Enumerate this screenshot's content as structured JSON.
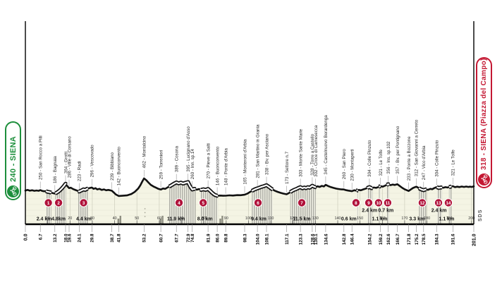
{
  "start_badge": {
    "label": "240 - SIENA"
  },
  "finish_badge": {
    "label": "318 - SIENA (Piazza del Campo)"
  },
  "signature": "SDS",
  "colors": {
    "start_green": "#1d8f3c",
    "finish_red": "#c41833",
    "sector_badge_red": "#b0123a",
    "fill_cream": "#f4f4e4",
    "band_gray": "#b0b0a8",
    "band_bg": "#efefe3",
    "grid_gray": "#cdcdbc",
    "line_black": "#111111"
  },
  "chart_data": {
    "type": "area",
    "title": "",
    "xlabel": "km",
    "ylabel": "elevation (m)",
    "xlim": [
      0,
      201
    ],
    "elev_range_m": [
      142,
      462
    ],
    "start_km_label": "0.0",
    "finish_km_label": "201.0",
    "x_ticks": [
      10,
      20,
      30,
      40,
      50,
      60,
      70,
      80,
      90,
      100,
      110,
      120,
      130,
      140,
      150,
      160,
      170,
      180,
      190,
      200
    ],
    "points": [
      {
        "km": 6.7,
        "elev": 250,
        "label": "250 - San Rocco a Pilli"
      },
      {
        "km": 13.2,
        "elev": 186,
        "label": "186 - Bagnaia"
      },
      {
        "km": 18.0,
        "elev": 364,
        "label": "364 - Grotti"
      },
      {
        "km": 19.6,
        "elev": 286,
        "label": "286 - Ville di Corsano"
      },
      {
        "km": 24.1,
        "elev": 223,
        "label": "223 - Radi"
      },
      {
        "km": 29.8,
        "elev": 296,
        "label": "296 - Vescovado"
      },
      {
        "km": 38.7,
        "elev": 239,
        "label": "239 - Bibbiano"
      },
      {
        "km": 41.8,
        "elev": 142,
        "label": "142 - Buonconvento"
      },
      {
        "km": 53.2,
        "elev": 462,
        "label": "462 - Montalcino"
      },
      {
        "km": 60.7,
        "elev": 259,
        "label": "259 - Torrenieri"
      },
      {
        "km": 67.7,
        "elev": 389,
        "label": "389 - Cosona"
      },
      {
        "km": 72.9,
        "elev": 395,
        "label": "395 - Lucignano d'Asso"
      },
      {
        "km": 74.8,
        "elev": 260,
        "label": "260 - Inn. sp.14"
      },
      {
        "km": 81.9,
        "elev": 270,
        "label": "270 - Pieve a Salti"
      },
      {
        "km": 86.0,
        "elev": 146,
        "label": "146 - Buonconvento"
      },
      {
        "km": 89.8,
        "elev": 148,
        "label": "148 - Ponte d'Arbia"
      },
      {
        "km": 98.3,
        "elev": 165,
        "label": "165 - Monteroni d'Arbia"
      },
      {
        "km": 104.0,
        "elev": 281,
        "label": "281 - San Martino in Grania"
      },
      {
        "km": 108.1,
        "elev": 338,
        "label": "338 - Bv. per Asciano"
      },
      {
        "km": 117.1,
        "elev": 173,
        "label": "173 - Settore n.7"
      },
      {
        "km": 123.3,
        "elev": 303,
        "label": "303 - Monte Sante Marie"
      },
      {
        "km": 128.6,
        "elev": 328,
        "label": "328 - Torre a Castello"
      },
      {
        "km": 130.1,
        "elev": 302,
        "label": "302 - Croce di Camesecca"
      },
      {
        "km": 134.6,
        "elev": 345,
        "label": "345 - Castelnuovo Berardenga"
      },
      {
        "km": 142.8,
        "elev": 260,
        "label": "260 - San Piero"
      },
      {
        "km": 146.4,
        "elev": 230,
        "label": "230 - Montaperti"
      },
      {
        "km": 154.2,
        "elev": 304,
        "label": "304 - Colle Pinzuto"
      },
      {
        "km": 159.2,
        "elev": 321,
        "label": "321 - Le Tolfe"
      },
      {
        "km": 162.6,
        "elev": 356,
        "label": "356 - Ins. sp.102"
      },
      {
        "km": 166.7,
        "elev": 357,
        "label": "357 - Bv. per Pontignano"
      },
      {
        "km": 171.8,
        "elev": 233,
        "label": "233 - Ponte a Bozzone"
      },
      {
        "km": 175.2,
        "elev": 312,
        "label": "312 - San Giovanni a Cerreto"
      },
      {
        "km": 178.5,
        "elev": 247,
        "label": "247 - Vico d'Arbia"
      },
      {
        "km": 184.3,
        "elev": 304,
        "label": "304 - Colle Pinzuto"
      },
      {
        "km": 191.6,
        "elev": 321,
        "label": "321 - Le Tolfe"
      }
    ],
    "sectors": [
      {
        "n": "1",
        "from": 9.2,
        "to": 11.6,
        "badge_km": 10.3,
        "label_km": 8.4,
        "length": "2.4 km",
        "row": "low"
      },
      {
        "n": "2",
        "from": 13.4,
        "to": 18.2,
        "badge_km": 14.9,
        "label_km": 14.9,
        "length": "4.8km",
        "row": "low"
      },
      {
        "n": "3",
        "from": 23.7,
        "to": 28.1,
        "badge_km": 26.1,
        "label_km": 26.2,
        "length": "4.4 km",
        "row": "low"
      },
      {
        "n": "4",
        "from": 64.4,
        "to": 76.3,
        "badge_km": 68.9,
        "label_km": 67.5,
        "length": "11.9 km",
        "row": "low"
      },
      {
        "n": "5",
        "from": 78.3,
        "to": 86.3,
        "badge_km": 79.7,
        "label_km": 80.5,
        "length": "8.0 km",
        "row": "low"
      },
      {
        "n": "6",
        "from": 101.5,
        "to": 110.9,
        "badge_km": 104.3,
        "label_km": 104.6,
        "length": "9.4 km",
        "row": "low"
      },
      {
        "n": "7",
        "from": 118.7,
        "to": 130.2,
        "badge_km": 123.9,
        "label_km": 123.9,
        "length": "11.5 km",
        "row": "low"
      },
      {
        "n": "8",
        "from": 148.4,
        "to": 149.0,
        "badge_km": 148.2,
        "label_km": 145.0,
        "length": "0.6 km",
        "row": "low"
      },
      {
        "n": "9",
        "from": 153.2,
        "to": 155.6,
        "badge_km": 153.9,
        "label_km": 154.3,
        "length": "2.4 km",
        "row": "high"
      },
      {
        "n": "10",
        "from": 158.5,
        "to": 159.2,
        "badge_km": 158.3,
        "label_km": 161.6,
        "length": "0.7 km",
        "row": "high"
      },
      {
        "n": "11",
        "from": 162.0,
        "to": 163.1,
        "badge_km": 162.4,
        "label_km": 158.8,
        "length": "1.1 km",
        "row": "low"
      },
      {
        "n": "12",
        "from": 176.4,
        "to": 179.7,
        "badge_km": 177.9,
        "label_km": 175.5,
        "length": "3.3 km",
        "row": "low"
      },
      {
        "n": "13",
        "from": 184.4,
        "to": 186.8,
        "badge_km": 185.2,
        "label_km": 185.4,
        "length": "2.4 km",
        "row": "high"
      },
      {
        "n": "14",
        "from": 189.9,
        "to": 191.0,
        "badge_km": 189.6,
        "label_km": 188.8,
        "length": "1.1 km",
        "row": "low"
      }
    ],
    "landmark_towns_km": [
      42.3,
      61.2,
      88.0
    ],
    "tree_dots_km": 53.6,
    "profile": [
      [
        0,
        240
      ],
      [
        1,
        252
      ],
      [
        2,
        238
      ],
      [
        3,
        246
      ],
      [
        4,
        236
      ],
      [
        5,
        242
      ],
      [
        6,
        236
      ],
      [
        6.7,
        250
      ],
      [
        7.5,
        235
      ],
      [
        8.3,
        228
      ],
      [
        9.2,
        230
      ],
      [
        10,
        218
      ],
      [
        11,
        210
      ],
      [
        12,
        198
      ],
      [
        13.2,
        186
      ],
      [
        14.2,
        205
      ],
      [
        15.2,
        235
      ],
      [
        16.2,
        275
      ],
      [
        17.1,
        315
      ],
      [
        18,
        364
      ],
      [
        18.8,
        320
      ],
      [
        19.6,
        286
      ],
      [
        20.4,
        292
      ],
      [
        21.2,
        272
      ],
      [
        22,
        258
      ],
      [
        23,
        242
      ],
      [
        24.1,
        223
      ],
      [
        25,
        240
      ],
      [
        26,
        262
      ],
      [
        26.8,
        252
      ],
      [
        27.6,
        272
      ],
      [
        28.7,
        284
      ],
      [
        29.8,
        296
      ],
      [
        30.6,
        272
      ],
      [
        31.4,
        284
      ],
      [
        32.2,
        262
      ],
      [
        33.2,
        272
      ],
      [
        34.2,
        252
      ],
      [
        35.2,
        262
      ],
      [
        36.2,
        246
      ],
      [
        37.2,
        252
      ],
      [
        38.7,
        239
      ],
      [
        39.5,
        210
      ],
      [
        40.5,
        172
      ],
      [
        41.8,
        142
      ],
      [
        43.5,
        146
      ],
      [
        45.5,
        152
      ],
      [
        47.5,
        178
      ],
      [
        49,
        215
      ],
      [
        50.5,
        275
      ],
      [
        51.5,
        335
      ],
      [
        52.4,
        405
      ],
      [
        53.2,
        462
      ],
      [
        54.2,
        430
      ],
      [
        55.2,
        385
      ],
      [
        56.2,
        345
      ],
      [
        57.4,
        315
      ],
      [
        58.6,
        292
      ],
      [
        59.6,
        272
      ],
      [
        60.7,
        259
      ],
      [
        61.7,
        278
      ],
      [
        62.7,
        272
      ],
      [
        63.7,
        298
      ],
      [
        64.7,
        318
      ],
      [
        65.7,
        342
      ],
      [
        66.7,
        368
      ],
      [
        67.7,
        389
      ],
      [
        68.7,
        372
      ],
      [
        69.7,
        384
      ],
      [
        70.7,
        368
      ],
      [
        71.7,
        382
      ],
      [
        72.9,
        395
      ],
      [
        73.8,
        320
      ],
      [
        74.8,
        260
      ],
      [
        75.8,
        272
      ],
      [
        76.8,
        256
      ],
      [
        77.8,
        268
      ],
      [
        78.8,
        252
      ],
      [
        79.8,
        264
      ],
      [
        80.8,
        252
      ],
      [
        81.9,
        270
      ],
      [
        82.8,
        236
      ],
      [
        83.8,
        196
      ],
      [
        84.8,
        164
      ],
      [
        86,
        146
      ],
      [
        87.5,
        150
      ],
      [
        88.6,
        146
      ],
      [
        89.8,
        148
      ],
      [
        91.5,
        154
      ],
      [
        93,
        150
      ],
      [
        95,
        158
      ],
      [
        96.5,
        156
      ],
      [
        98.3,
        165
      ],
      [
        99.5,
        185
      ],
      [
        100.7,
        215
      ],
      [
        102,
        245
      ],
      [
        103,
        265
      ],
      [
        104,
        281
      ],
      [
        105,
        295
      ],
      [
        106,
        310
      ],
      [
        107,
        322
      ],
      [
        108.1,
        338
      ],
      [
        109.3,
        305
      ],
      [
        110.5,
        268
      ],
      [
        111.7,
        240
      ],
      [
        113,
        218
      ],
      [
        114.3,
        200
      ],
      [
        115.6,
        186
      ],
      [
        117.1,
        173
      ],
      [
        118.2,
        198
      ],
      [
        119.3,
        228
      ],
      [
        120.4,
        252
      ],
      [
        121.6,
        272
      ],
      [
        122.4,
        288
      ],
      [
        123.3,
        303
      ],
      [
        124.2,
        282
      ],
      [
        125,
        296
      ],
      [
        125.8,
        284
      ],
      [
        126.6,
        302
      ],
      [
        127.4,
        292
      ],
      [
        128.6,
        328
      ],
      [
        129.4,
        312
      ],
      [
        130.1,
        302
      ],
      [
        131,
        318
      ],
      [
        131.9,
        306
      ],
      [
        132.9,
        326
      ],
      [
        133.8,
        316
      ],
      [
        134.6,
        345
      ],
      [
        135.8,
        322
      ],
      [
        137,
        302
      ],
      [
        138.2,
        288
      ],
      [
        139.4,
        276
      ],
      [
        140.6,
        268
      ],
      [
        141.7,
        262
      ],
      [
        142.8,
        260
      ],
      [
        143.8,
        248
      ],
      [
        144.8,
        240
      ],
      [
        145.6,
        234
      ],
      [
        146.4,
        230
      ],
      [
        147.4,
        246
      ],
      [
        148.4,
        238
      ],
      [
        149.4,
        252
      ],
      [
        150.4,
        246
      ],
      [
        151.4,
        262
      ],
      [
        152.4,
        274
      ],
      [
        153.3,
        288
      ],
      [
        154.2,
        304
      ],
      [
        155.2,
        284
      ],
      [
        156.2,
        296
      ],
      [
        157.2,
        290
      ],
      [
        158.2,
        304
      ],
      [
        159.2,
        321
      ],
      [
        160.2,
        312
      ],
      [
        161.2,
        330
      ],
      [
        162.6,
        356
      ],
      [
        163.6,
        338
      ],
      [
        164.6,
        350
      ],
      [
        165.6,
        342
      ],
      [
        166.7,
        357
      ],
      [
        167.8,
        324
      ],
      [
        169,
        288
      ],
      [
        170.2,
        260
      ],
      [
        171.8,
        233
      ],
      [
        172.8,
        262
      ],
      [
        173.8,
        288
      ],
      [
        175.2,
        312
      ],
      [
        176.4,
        284
      ],
      [
        177.4,
        262
      ],
      [
        178.5,
        247
      ],
      [
        179.5,
        262
      ],
      [
        180.5,
        254
      ],
      [
        181.5,
        272
      ],
      [
        182.4,
        266
      ],
      [
        183.3,
        286
      ],
      [
        184.3,
        304
      ],
      [
        185.3,
        288
      ],
      [
        186.3,
        298
      ],
      [
        187.3,
        292
      ],
      [
        188.3,
        302
      ],
      [
        189.2,
        296
      ],
      [
        190.3,
        308
      ],
      [
        191.6,
        321
      ],
      [
        192.6,
        302
      ],
      [
        193.6,
        312
      ],
      [
        194.6,
        304
      ],
      [
        195.6,
        314
      ],
      [
        196.6,
        306
      ],
      [
        197.6,
        314
      ],
      [
        198.6,
        306
      ],
      [
        199.3,
        312
      ],
      [
        200.1,
        306
      ],
      [
        201,
        318
      ]
    ]
  }
}
